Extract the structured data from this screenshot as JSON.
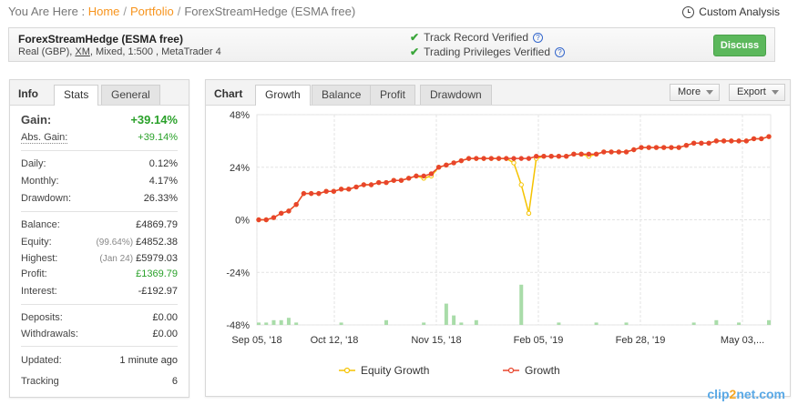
{
  "breadcrumb": {
    "prefix": "You Are Here :",
    "home": "Home",
    "portfolio": "Portfolio",
    "current": "ForexStreamHedge (ESMA free)"
  },
  "custom_analysis": "Custom Analysis",
  "system": {
    "name": "ForexStreamHedge (ESMA free)",
    "desc_pre": "Real (GBP), ",
    "broker": "XM",
    "desc_post": ", Mixed, 1:500 , MetaTrader 4",
    "track_record": "Track Record Verified",
    "trading_privileges": "Trading Privileges Verified",
    "discuss": "Discuss"
  },
  "info": {
    "title": "Info",
    "tabs": [
      "Stats",
      "General"
    ],
    "gain_label": "Gain:",
    "gain_value": "+39.14%",
    "abs_gain_label": "Abs. Gain:",
    "abs_gain_value": "+39.14%",
    "daily_label": "Daily:",
    "daily_value": "0.12%",
    "monthly_label": "Monthly:",
    "monthly_value": "4.17%",
    "drawdown_label": "Drawdown:",
    "drawdown_value": "26.33%",
    "balance_label": "Balance:",
    "balance_value": "£4869.79",
    "equity_label": "Equity:",
    "equity_note": "(99.64%)",
    "equity_value": "£4852.38",
    "highest_label": "Highest:",
    "highest_note": "(Jan 24)",
    "highest_value": "£5979.03",
    "profit_label": "Profit:",
    "profit_value": "£1369.79",
    "interest_label": "Interest:",
    "interest_value": "-£192.97",
    "deposits_label": "Deposits:",
    "deposits_value": "£0.00",
    "withdrawals_label": "Withdrawals:",
    "withdrawals_value": "£0.00",
    "updated_label": "Updated:",
    "updated_value": "1 minute ago",
    "tracking_label": "Tracking",
    "tracking_value": "6"
  },
  "chart_panel": {
    "title": "Chart",
    "tabs": [
      "Growth",
      "Balance",
      "Profit",
      "Drawdown"
    ],
    "more": "More",
    "export": "Export"
  },
  "brand": {
    "a": "clip",
    "b": "2",
    "c": "net.com"
  },
  "chart_data": {
    "type": "line",
    "ylim": [
      -48,
      48
    ],
    "yticks": [
      "48%",
      "24%",
      "0%",
      "-24%",
      "-48%"
    ],
    "xticks": [
      "Sep 05, '18",
      "Oct 12, '18",
      "Nov 15, '18",
      "Feb 05, '19",
      "Feb 28, '19",
      "May 03,..."
    ],
    "series": [
      {
        "name": "Equity Growth",
        "color": "#f5c300",
        "values": [
          0,
          0,
          1,
          3,
          4,
          7,
          12,
          12,
          12,
          13,
          13,
          14,
          14,
          15,
          16,
          16,
          17,
          17,
          18,
          18,
          19,
          20,
          19,
          20,
          24,
          25,
          26,
          27,
          28,
          28,
          28,
          28,
          28,
          28,
          26,
          16,
          3,
          28,
          29,
          29,
          29,
          29,
          30,
          30,
          29,
          30,
          31,
          31,
          31,
          31,
          32,
          33,
          33,
          33,
          33,
          33,
          33,
          34,
          35,
          35,
          35,
          36,
          36,
          36,
          36,
          36,
          37,
          37,
          38
        ]
      },
      {
        "name": "Growth",
        "color": "#e8452c",
        "values": [
          0,
          0,
          1,
          3,
          4,
          7,
          12,
          12,
          12,
          13,
          13,
          14,
          14,
          15,
          16,
          16,
          17,
          17,
          18,
          18,
          19,
          20,
          20,
          21,
          24,
          25,
          26,
          27,
          28,
          28,
          28,
          28,
          28,
          28,
          28,
          28,
          28,
          29,
          29,
          29,
          29,
          29,
          30,
          30,
          30,
          30,
          31,
          31,
          31,
          31,
          32,
          33,
          33,
          33,
          33,
          33,
          33,
          34,
          35,
          35,
          35,
          36,
          36,
          36,
          36,
          36,
          37,
          37,
          38
        ]
      }
    ],
    "bars_color": "#a9dca9",
    "bars": [
      1,
      1,
      2,
      2,
      3,
      1,
      0,
      0,
      0,
      0,
      0,
      1,
      0,
      0,
      0,
      0,
      0,
      2,
      0,
      0,
      0,
      0,
      1,
      0,
      0,
      9,
      4,
      1,
      0,
      2,
      0,
      0,
      0,
      0,
      0,
      17,
      0,
      0,
      0,
      0,
      1,
      0,
      0,
      0,
      0,
      1,
      0,
      0,
      0,
      1,
      0,
      0,
      0,
      0,
      0,
      0,
      0,
      0,
      1,
      0,
      0,
      2,
      0,
      0,
      1,
      0,
      0,
      0,
      2
    ]
  }
}
